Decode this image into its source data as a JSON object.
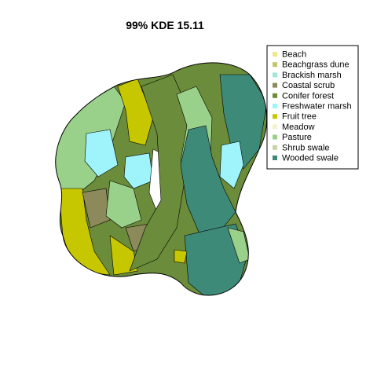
{
  "title": "99% KDE 15.11",
  "legend": {
    "placement": "top-right",
    "items": [
      {
        "label": "Beach",
        "color": "#f0e68c"
      },
      {
        "label": "Beachgrass dune",
        "color": "#c2c56a"
      },
      {
        "label": "Brackish marsh",
        "color": "#9fe6d6"
      },
      {
        "label": "Coastal scrub",
        "color": "#8c8a5a"
      },
      {
        "label": "Conifer forest",
        "color": "#6b8c3a"
      },
      {
        "label": "Freshwater marsh",
        "color": "#9ff4fc"
      },
      {
        "label": "Fruit tree",
        "color": "#c7c700"
      },
      {
        "label": "Meadow",
        "color": "#f2f2cc"
      },
      {
        "label": "Pasture",
        "color": "#9ad18a"
      },
      {
        "label": "Shrub swale",
        "color": "#c8d4a8"
      },
      {
        "label": "Wooded swale",
        "color": "#3e8a78"
      }
    ]
  },
  "map": {
    "outline_color": "#000000",
    "background_color": "#ffffff"
  }
}
